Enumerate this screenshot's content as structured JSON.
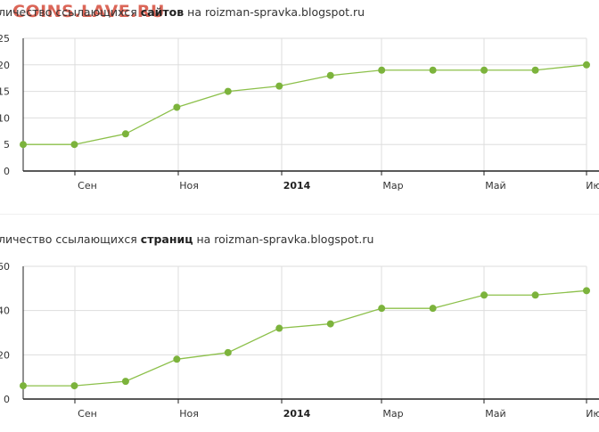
{
  "watermark": "COINS.LAVE.RU",
  "charts": [
    {
      "title_prefix": "личество ссылающихся",
      "title_bold": "сайтов",
      "title_suffix": "на roizman-spravka.blogspot.ru"
    },
    {
      "title_prefix": "личество ссылающихся",
      "title_bold": "страниц",
      "title_suffix": "на roizman-spravka.blogspot.ru"
    }
  ],
  "colors": {
    "line": "#8cc04a",
    "point": "#7cb33c",
    "grid": "#dddddd",
    "axis": "#222222"
  },
  "chart_data": [
    {
      "type": "line",
      "title": "личество ссылающихся сайтов на roizman-spravka.blogspot.ru",
      "x": [
        0,
        1,
        2,
        3,
        4,
        5,
        6,
        7,
        8,
        9,
        10,
        11
      ],
      "y": [
        5,
        5,
        7,
        12,
        15,
        16,
        18,
        19,
        19,
        19,
        19,
        20
      ],
      "ylim": [
        0,
        25
      ],
      "yticks": [
        "0",
        "5",
        "10",
        "15",
        "20",
        "25"
      ],
      "xtick_labels": [
        "Сен",
        "Ноя",
        "2014",
        "Мар",
        "Май",
        "Ию"
      ],
      "bold_xtick": "2014",
      "grid": true
    },
    {
      "type": "line",
      "title": "личество ссылающихся страниц на roizman-spravka.blogspot.ru",
      "x": [
        0,
        1,
        2,
        3,
        4,
        5,
        6,
        7,
        8,
        9,
        10,
        11
      ],
      "y": [
        6,
        6,
        8,
        18,
        21,
        32,
        34,
        41,
        41,
        47,
        47,
        49
      ],
      "ylim": [
        0,
        60
      ],
      "yticks": [
        "0",
        "20",
        "40",
        "60"
      ],
      "xtick_labels": [
        "Сен",
        "Ноя",
        "2014",
        "Мар",
        "Май",
        "Ию"
      ],
      "bold_xtick": "2014",
      "grid": true
    }
  ]
}
